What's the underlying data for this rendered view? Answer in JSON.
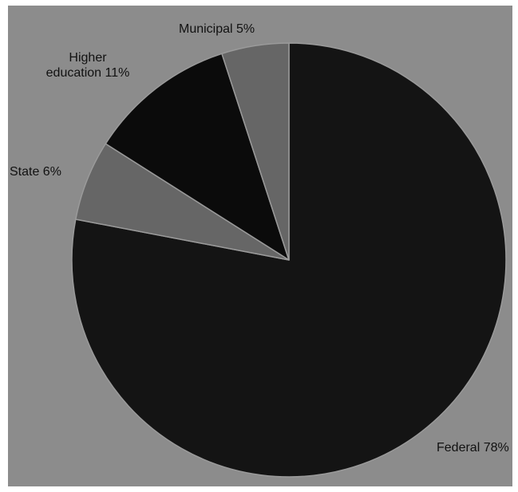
{
  "chart_data": {
    "type": "pie",
    "title": "",
    "slices": [
      {
        "label": "Federal",
        "value": 78,
        "text": "Federal 78%",
        "color": "#141414"
      },
      {
        "label": "State",
        "value": 6,
        "text": "State 6%",
        "color": "#666666"
      },
      {
        "label": "Higher education",
        "value": 11,
        "text": "Higher\neducation 11%",
        "color": "#0b0b0b"
      },
      {
        "label": "Municipal",
        "value": 5,
        "text": "Municipal 5%",
        "color": "#666666"
      }
    ],
    "start_angle_deg": 0,
    "direction": "clockwise",
    "slice_border_color": "#9a9a9a",
    "background_color": "#8c8c8c",
    "legend": "none"
  }
}
